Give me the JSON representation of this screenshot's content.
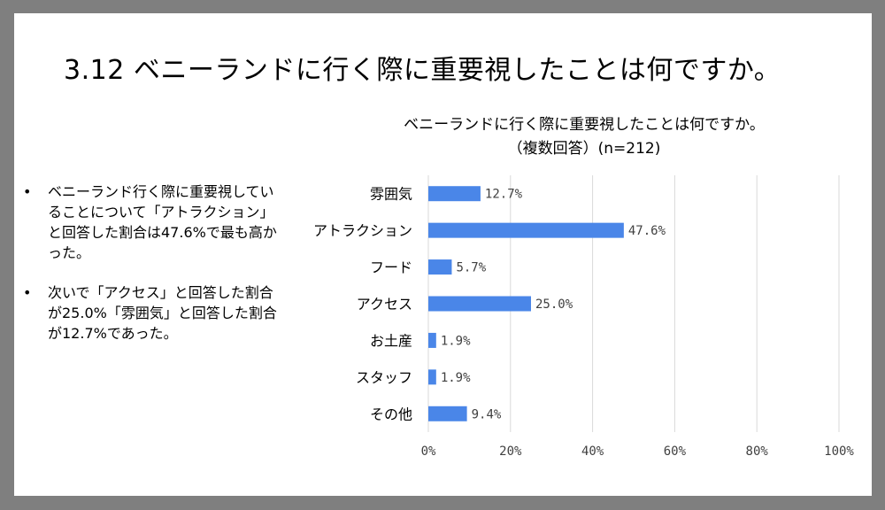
{
  "slide": {
    "title": "3.12 ベニーランドに行く際に重要視したことは何ですか。"
  },
  "bullets": [
    "ベニーランド行く際に重要視していることについて「アトラクション」と回答した割合は47.6%で最も高かった。",
    "次いで「アクセス」と回答した割合が25.0%「雰囲気」と回答した割合が12.7%であった。"
  ],
  "bullet_marker": "•",
  "chart_data": {
    "type": "bar",
    "orientation": "horizontal",
    "title": "ベニーランドに行く際に重要視したことは何ですか。",
    "subtitle": "（複数回答）(n=212)",
    "categories": [
      "雰囲気",
      "アトラクション",
      "フード",
      "アクセス",
      "お土産",
      "スタッフ",
      "その他"
    ],
    "values": [
      12.7,
      47.6,
      5.7,
      25.0,
      1.9,
      1.9,
      9.4
    ],
    "data_labels": [
      "12.7%",
      "47.6%",
      "5.7%",
      "25.0%",
      "1.9%",
      "1.9%",
      "9.4%"
    ],
    "xlim": [
      0,
      100
    ],
    "xticks": [
      0,
      20,
      40,
      60,
      80,
      100
    ],
    "xtick_labels": [
      "0%",
      "20%",
      "40%",
      "60%",
      "80%",
      "100%"
    ],
    "grid": true,
    "bar_color": "#4a86e8",
    "grid_color": "#d9d9d9"
  }
}
